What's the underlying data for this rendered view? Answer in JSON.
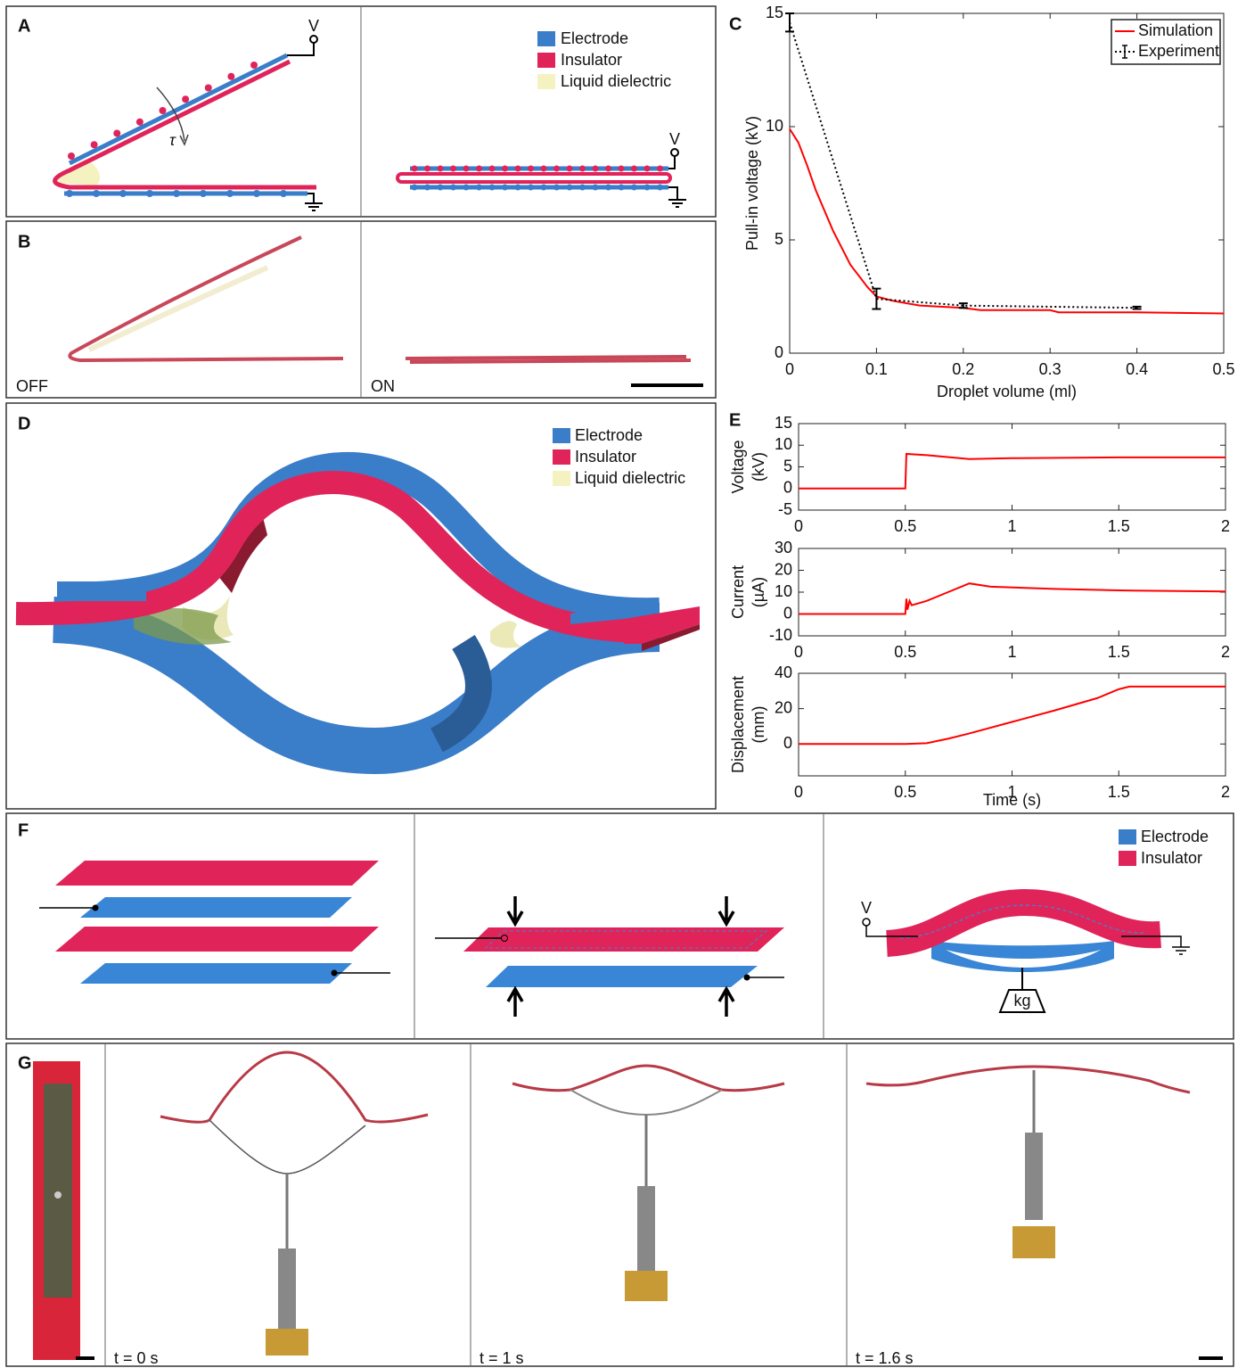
{
  "panels": {
    "A": {
      "label": "A",
      "left_terminal": "V",
      "right_terminal": "V",
      "torque": "τ",
      "legend": [
        "Electrode",
        "Insulator",
        "Liquid dielectric"
      ]
    },
    "B": {
      "label": "B",
      "left_caption": "OFF",
      "right_caption": "ON"
    },
    "C": {
      "label": "C"
    },
    "D": {
      "label": "D",
      "legend": [
        "Electrode",
        "Insulator",
        "Liquid dielectric"
      ]
    },
    "E": {
      "label": "E"
    },
    "F": {
      "label": "F",
      "terminal": "V",
      "weight": "kg",
      "legend": [
        "Electrode",
        "Insulator"
      ]
    },
    "G": {
      "label": "G",
      "captions": [
        "t = 0 s",
        "t = 1 s",
        "t = 1.6 s"
      ]
    }
  },
  "chart_data": [
    {
      "type": "line",
      "xlabel": "Droplet volume (ml)",
      "ylabel": [
        "Pull-in voltage (kV)"
      ],
      "xlim": [
        0,
        0.5
      ],
      "ylim": [
        0,
        15
      ],
      "xticks": [
        0,
        0.1,
        0.2,
        0.3,
        0.4,
        0.5
      ],
      "yticks": [
        0,
        5,
        10,
        15
      ],
      "legend": "upper right",
      "series": [
        {
          "name": "Simulation",
          "color": "#ff0000",
          "linestyle": "solid",
          "x": [
            0,
            0.01,
            0.02,
            0.03,
            0.05,
            0.07,
            0.09,
            0.1,
            0.12,
            0.15,
            0.2,
            0.22,
            0.3,
            0.31,
            0.4,
            0.5
          ],
          "values": [
            9.9,
            9.3,
            8.3,
            7.2,
            5.4,
            3.9,
            2.9,
            2.5,
            2.3,
            2.1,
            2.0,
            1.9,
            1.9,
            1.8,
            1.8,
            1.75
          ]
        },
        {
          "name": "Experiment",
          "color": "#000000",
          "linestyle": "dotted",
          "x": [
            0,
            0.1,
            0.2,
            0.4
          ],
          "values": [
            14.6,
            2.4,
            2.1,
            2.0
          ],
          "errors": [
            0.4,
            0.45,
            0.1,
            0.05
          ]
        }
      ]
    },
    {
      "type": "line",
      "ylabel": [
        "Voltage",
        "(kV)"
      ],
      "xlim": [
        0,
        2
      ],
      "ylim": [
        -5,
        15
      ],
      "xticks": [
        0,
        0.5,
        1,
        1.5,
        2
      ],
      "yticks": [
        -5,
        0,
        5,
        10,
        15
      ],
      "series": [
        {
          "color": "#ff0000",
          "linestyle": "solid",
          "x": [
            0,
            0.49,
            0.5,
            0.505,
            0.6,
            0.8,
            1,
            1.5,
            2
          ],
          "values": [
            0,
            0,
            0,
            8,
            7.7,
            6.8,
            7,
            7.2,
            7.2
          ]
        }
      ]
    },
    {
      "type": "line",
      "ylabel": [
        "Current",
        "(µA)"
      ],
      "xlim": [
        0,
        2
      ],
      "ylim": [
        -10,
        30
      ],
      "xticks": [
        0,
        0.5,
        1,
        1.5,
        2
      ],
      "yticks": [
        -10,
        0,
        10,
        20,
        30
      ],
      "series": [
        {
          "color": "#ff0000",
          "linestyle": "solid",
          "x": [
            0,
            0.5,
            0.505,
            0.51,
            0.52,
            0.53,
            0.6,
            0.7,
            0.8,
            0.9,
            1.2,
            1.5,
            2
          ],
          "values": [
            0,
            0,
            7,
            2,
            6,
            4,
            6,
            10,
            14,
            12.5,
            11.5,
            10.8,
            10.3
          ]
        }
      ]
    },
    {
      "type": "line",
      "xlabel": "Time (s)",
      "ylabel": [
        "Displacement",
        "(mm)"
      ],
      "xlim": [
        0,
        2
      ],
      "ylim": [
        -18,
        40
      ],
      "xticks": [
        0,
        0.5,
        1,
        1.5,
        2
      ],
      "yticks": [
        0,
        20,
        40
      ],
      "series": [
        {
          "color": "#ff0000",
          "linestyle": "solid",
          "x": [
            0,
            0.5,
            0.6,
            0.7,
            0.8,
            1,
            1.2,
            1.4,
            1.5,
            1.55,
            2
          ],
          "values": [
            0,
            0,
            0.5,
            3,
            6,
            12.5,
            19,
            26,
            31,
            32.5,
            32.5
          ]
        }
      ]
    }
  ]
}
